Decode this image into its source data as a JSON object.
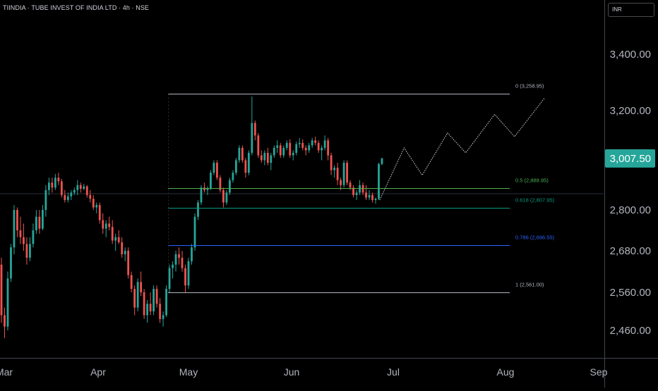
{
  "header": {
    "title": "TIINDIA · TUBE INVEST OF INDIA LTD · 4h · NSE"
  },
  "scale": {
    "currency": "INR"
  },
  "colors": {
    "up": "#26a69a",
    "down": "#ef5350",
    "fib_0": "#b2b5be",
    "fib_05": "#4caf50",
    "fib_0618": "#089981",
    "fib_0786": "#2962ff",
    "fib_1": "#b2b5be",
    "last_price_bg": "#26a69a"
  },
  "chart_data": {
    "type": "candlestick",
    "title": "TIINDIA · TUBE INVEST OF INDIA LTD · 4h · NSE",
    "y_ticks": [
      "3,400.00",
      "3,200.00",
      "2,800.00",
      "2,680.00",
      "2,560.00",
      "2,460.00"
    ],
    "x_ticks": [
      "Mar",
      "Apr",
      "May",
      "Jun",
      "Jul",
      "Aug",
      "Sep"
    ],
    "last_price": "3,007.50",
    "grid": false,
    "fib_levels": [
      {
        "label": "0 (3,258.95)",
        "value": 3258.95
      },
      {
        "label": "0.5 (2,888.95)",
        "value": 2888.95
      },
      {
        "label": "0.618 (2,807.95)",
        "value": 2807.95
      },
      {
        "label": "0.786 (2,696.55)",
        "value": 2696.55
      },
      {
        "label": "1 (2,561.00)",
        "value": 2561.0
      }
    ],
    "projection_path": [
      {
        "date": "2025-06-27",
        "price": 2840
      },
      {
        "date": "2025-07-04",
        "price": 3050
      },
      {
        "date": "2025-07-09",
        "price": 2940
      },
      {
        "date": "2025-07-16",
        "price": 3110
      },
      {
        "date": "2025-07-21",
        "price": 3030
      },
      {
        "date": "2025-07-29",
        "price": 3185
      },
      {
        "date": "2025-08-04",
        "price": 3095
      },
      {
        "date": "2025-08-14",
        "price": 3245
      }
    ],
    "candles": [
      {
        "o": 2640,
        "h": 2660,
        "l": 2480,
        "c": 2500
      },
      {
        "o": 2500,
        "h": 2520,
        "l": 2440,
        "c": 2470
      },
      {
        "o": 2470,
        "h": 2620,
        "l": 2460,
        "c": 2600
      },
      {
        "o": 2600,
        "h": 2700,
        "l": 2590,
        "c": 2690
      },
      {
        "o": 2690,
        "h": 2820,
        "l": 2670,
        "c": 2800
      },
      {
        "o": 2800,
        "h": 2810,
        "l": 2720,
        "c": 2740
      },
      {
        "o": 2740,
        "h": 2780,
        "l": 2700,
        "c": 2720
      },
      {
        "o": 2720,
        "h": 2760,
        "l": 2680,
        "c": 2700
      },
      {
        "o": 2700,
        "h": 2720,
        "l": 2640,
        "c": 2660
      },
      {
        "o": 2660,
        "h": 2720,
        "l": 2650,
        "c": 2700
      },
      {
        "o": 2700,
        "h": 2760,
        "l": 2690,
        "c": 2740
      },
      {
        "o": 2740,
        "h": 2800,
        "l": 2730,
        "c": 2780
      },
      {
        "o": 2780,
        "h": 2800,
        "l": 2730,
        "c": 2745
      },
      {
        "o": 2745,
        "h": 2820,
        "l": 2740,
        "c": 2800
      },
      {
        "o": 2800,
        "h": 2900,
        "l": 2780,
        "c": 2880
      },
      {
        "o": 2880,
        "h": 2930,
        "l": 2860,
        "c": 2910
      },
      {
        "o": 2910,
        "h": 2930,
        "l": 2870,
        "c": 2890
      },
      {
        "o": 2890,
        "h": 2945,
        "l": 2880,
        "c": 2930
      },
      {
        "o": 2930,
        "h": 2950,
        "l": 2900,
        "c": 2915
      },
      {
        "o": 2915,
        "h": 2925,
        "l": 2850,
        "c": 2860
      },
      {
        "o": 2860,
        "h": 2880,
        "l": 2830,
        "c": 2840
      },
      {
        "o": 2840,
        "h": 2870,
        "l": 2830,
        "c": 2855
      },
      {
        "o": 2855,
        "h": 2880,
        "l": 2840,
        "c": 2870
      },
      {
        "o": 2870,
        "h": 2890,
        "l": 2860,
        "c": 2880
      },
      {
        "o": 2880,
        "h": 2920,
        "l": 2860,
        "c": 2900
      },
      {
        "o": 2900,
        "h": 2910,
        "l": 2870,
        "c": 2885
      },
      {
        "o": 2885,
        "h": 2905,
        "l": 2880,
        "c": 2895
      },
      {
        "o": 2895,
        "h": 2900,
        "l": 2850,
        "c": 2860
      },
      {
        "o": 2860,
        "h": 2880,
        "l": 2830,
        "c": 2845
      },
      {
        "o": 2845,
        "h": 2860,
        "l": 2800,
        "c": 2810
      },
      {
        "o": 2810,
        "h": 2830,
        "l": 2790,
        "c": 2820
      },
      {
        "o": 2820,
        "h": 2830,
        "l": 2760,
        "c": 2770
      },
      {
        "o": 2770,
        "h": 2790,
        "l": 2730,
        "c": 2745
      },
      {
        "o": 2745,
        "h": 2770,
        "l": 2720,
        "c": 2760
      },
      {
        "o": 2760,
        "h": 2780,
        "l": 2740,
        "c": 2750
      },
      {
        "o": 2750,
        "h": 2770,
        "l": 2700,
        "c": 2710
      },
      {
        "o": 2710,
        "h": 2730,
        "l": 2680,
        "c": 2720
      },
      {
        "o": 2720,
        "h": 2740,
        "l": 2700,
        "c": 2705
      },
      {
        "o": 2705,
        "h": 2720,
        "l": 2660,
        "c": 2670
      },
      {
        "o": 2670,
        "h": 2690,
        "l": 2650,
        "c": 2680
      },
      {
        "o": 2680,
        "h": 2690,
        "l": 2600,
        "c": 2610
      },
      {
        "o": 2610,
        "h": 2620,
        "l": 2560,
        "c": 2570
      },
      {
        "o": 2570,
        "h": 2580,
        "l": 2500,
        "c": 2520
      },
      {
        "o": 2520,
        "h": 2600,
        "l": 2510,
        "c": 2590
      },
      {
        "o": 2590,
        "h": 2620,
        "l": 2550,
        "c": 2560
      },
      {
        "o": 2560,
        "h": 2570,
        "l": 2490,
        "c": 2500
      },
      {
        "o": 2500,
        "h": 2540,
        "l": 2480,
        "c": 2530
      },
      {
        "o": 2530,
        "h": 2560,
        "l": 2500,
        "c": 2510
      },
      {
        "o": 2510,
        "h": 2580,
        "l": 2500,
        "c": 2570
      },
      {
        "o": 2570,
        "h": 2580,
        "l": 2520,
        "c": 2530
      },
      {
        "o": 2530,
        "h": 2545,
        "l": 2480,
        "c": 2490
      },
      {
        "o": 2490,
        "h": 2510,
        "l": 2470,
        "c": 2500
      },
      {
        "o": 2500,
        "h": 2580,
        "l": 2495,
        "c": 2570
      },
      {
        "o": 2570,
        "h": 2640,
        "l": 2560,
        "c": 2630
      },
      {
        "o": 2630,
        "h": 2650,
        "l": 2600,
        "c": 2640
      },
      {
        "o": 2640,
        "h": 2680,
        "l": 2620,
        "c": 2670
      },
      {
        "o": 2670,
        "h": 2690,
        "l": 2640,
        "c": 2660
      },
      {
        "o": 2660,
        "h": 2680,
        "l": 2620,
        "c": 2630
      },
      {
        "o": 2630,
        "h": 2640,
        "l": 2560,
        "c": 2580
      },
      {
        "o": 2580,
        "h": 2660,
        "l": 2570,
        "c": 2650
      },
      {
        "o": 2650,
        "h": 2700,
        "l": 2640,
        "c": 2690
      },
      {
        "o": 2690,
        "h": 2790,
        "l": 2680,
        "c": 2780
      },
      {
        "o": 2780,
        "h": 2840,
        "l": 2770,
        "c": 2830
      },
      {
        "o": 2830,
        "h": 2900,
        "l": 2820,
        "c": 2890
      },
      {
        "o": 2890,
        "h": 2910,
        "l": 2870,
        "c": 2880
      },
      {
        "o": 2880,
        "h": 2895,
        "l": 2860,
        "c": 2885
      },
      {
        "o": 2885,
        "h": 2960,
        "l": 2880,
        "c": 2950
      },
      {
        "o": 2950,
        "h": 3000,
        "l": 2940,
        "c": 2990
      },
      {
        "o": 2990,
        "h": 3000,
        "l": 2920,
        "c": 2930
      },
      {
        "o": 2930,
        "h": 2940,
        "l": 2870,
        "c": 2880
      },
      {
        "o": 2880,
        "h": 2890,
        "l": 2810,
        "c": 2830
      },
      {
        "o": 2830,
        "h": 2880,
        "l": 2820,
        "c": 2870
      },
      {
        "o": 2870,
        "h": 2930,
        "l": 2860,
        "c": 2920
      },
      {
        "o": 2920,
        "h": 2960,
        "l": 2910,
        "c": 2950
      },
      {
        "o": 2950,
        "h": 3010,
        "l": 2940,
        "c": 3000
      },
      {
        "o": 3000,
        "h": 3060,
        "l": 2990,
        "c": 3050
      },
      {
        "o": 3050,
        "h": 3060,
        "l": 2990,
        "c": 3000
      },
      {
        "o": 3000,
        "h": 3010,
        "l": 2930,
        "c": 2950
      },
      {
        "o": 2950,
        "h": 3040,
        "l": 2940,
        "c": 3030
      },
      {
        "o": 3030,
        "h": 3250,
        "l": 3020,
        "c": 3150
      },
      {
        "o": 3150,
        "h": 3160,
        "l": 3080,
        "c": 3100
      },
      {
        "o": 3100,
        "h": 3110,
        "l": 3010,
        "c": 3020
      },
      {
        "o": 3020,
        "h": 3040,
        "l": 2990,
        "c": 3000
      },
      {
        "o": 3000,
        "h": 3040,
        "l": 2980,
        "c": 3030
      },
      {
        "o": 3030,
        "h": 3050,
        "l": 2980,
        "c": 2990
      },
      {
        "o": 2990,
        "h": 3030,
        "l": 2960,
        "c": 3020
      },
      {
        "o": 3020,
        "h": 3060,
        "l": 3010,
        "c": 3050
      },
      {
        "o": 3050,
        "h": 3080,
        "l": 3030,
        "c": 3060
      },
      {
        "o": 3060,
        "h": 3070,
        "l": 3010,
        "c": 3020
      },
      {
        "o": 3020,
        "h": 3060,
        "l": 3010,
        "c": 3050
      },
      {
        "o": 3050,
        "h": 3080,
        "l": 3040,
        "c": 3070
      },
      {
        "o": 3070,
        "h": 3085,
        "l": 3010,
        "c": 3020
      },
      {
        "o": 3020,
        "h": 3040,
        "l": 3000,
        "c": 3030
      },
      {
        "o": 3030,
        "h": 3075,
        "l": 3020,
        "c": 3065
      },
      {
        "o": 3065,
        "h": 3090,
        "l": 3050,
        "c": 3070
      },
      {
        "o": 3070,
        "h": 3085,
        "l": 3040,
        "c": 3050
      },
      {
        "o": 3050,
        "h": 3060,
        "l": 3020,
        "c": 3040
      },
      {
        "o": 3040,
        "h": 3070,
        "l": 3030,
        "c": 3060
      },
      {
        "o": 3060,
        "h": 3090,
        "l": 3050,
        "c": 3080
      },
      {
        "o": 3080,
        "h": 3095,
        "l": 3060,
        "c": 3070
      },
      {
        "o": 3070,
        "h": 3080,
        "l": 3030,
        "c": 3040
      },
      {
        "o": 3040,
        "h": 3060,
        "l": 3000,
        "c": 3050
      },
      {
        "o": 3050,
        "h": 3100,
        "l": 3040,
        "c": 3080
      },
      {
        "o": 3080,
        "h": 3090,
        "l": 3000,
        "c": 3020
      },
      {
        "o": 3020,
        "h": 3030,
        "l": 2940,
        "c": 2960
      },
      {
        "o": 2960,
        "h": 2980,
        "l": 2930,
        "c": 2970
      },
      {
        "o": 2970,
        "h": 2990,
        "l": 2900,
        "c": 2920
      },
      {
        "o": 2920,
        "h": 2930,
        "l": 2880,
        "c": 2900
      },
      {
        "o": 2900,
        "h": 3000,
        "l": 2890,
        "c": 2990
      },
      {
        "o": 2990,
        "h": 3000,
        "l": 2900,
        "c": 2910
      },
      {
        "o": 2910,
        "h": 2920,
        "l": 2880,
        "c": 2890
      },
      {
        "o": 2890,
        "h": 2900,
        "l": 2850,
        "c": 2860
      },
      {
        "o": 2860,
        "h": 2880,
        "l": 2840,
        "c": 2870
      },
      {
        "o": 2870,
        "h": 2920,
        "l": 2860,
        "c": 2900
      },
      {
        "o": 2900,
        "h": 2910,
        "l": 2860,
        "c": 2870
      },
      {
        "o": 2870,
        "h": 2900,
        "l": 2840,
        "c": 2850
      },
      {
        "o": 2850,
        "h": 2880,
        "l": 2840,
        "c": 2860
      },
      {
        "o": 2860,
        "h": 2870,
        "l": 2830,
        "c": 2840
      },
      {
        "o": 2840,
        "h": 2850,
        "l": 2825,
        "c": 2845
      },
      {
        "o": 2845,
        "h": 2990,
        "l": 2840,
        "c": 2985
      },
      {
        "o": 2985,
        "h": 3010,
        "l": 2980,
        "c": 3007.5
      }
    ]
  }
}
